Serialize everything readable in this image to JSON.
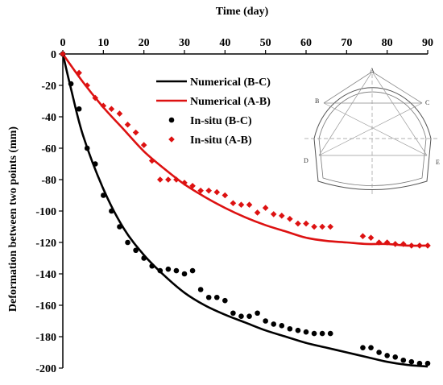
{
  "chart_data": {
    "type": "line",
    "x_axis": {
      "label": "Time (day)",
      "position": "top",
      "range": [
        0,
        90
      ],
      "ticks": [
        0,
        10,
        20,
        30,
        40,
        50,
        60,
        70,
        80,
        90
      ]
    },
    "y_axis": {
      "label": "Deformation between two points (mm)",
      "range": [
        -200,
        0
      ],
      "ticks": [
        0,
        -20,
        -40,
        -60,
        -80,
        -100,
        -120,
        -140,
        -160,
        -180,
        -200
      ]
    },
    "grid": false,
    "legend_position": "top-center",
    "series": [
      {
        "name": "Numerical (B-C)",
        "style": "line",
        "color": "#000000",
        "x": [
          0,
          2,
          5,
          10,
          15,
          20,
          25,
          30,
          35,
          40,
          45,
          50,
          55,
          60,
          65,
          70,
          75,
          80,
          85,
          90
        ],
        "y": [
          0,
          -22,
          -52,
          -86,
          -111,
          -128,
          -141,
          -152,
          -160,
          -166,
          -171,
          -176,
          -180,
          -184,
          -187,
          -190,
          -193,
          -196,
          -198,
          -199
        ]
      },
      {
        "name": "Numerical (A-B)",
        "style": "line",
        "color": "#dd1111",
        "x": [
          0,
          5,
          10,
          15,
          20,
          25,
          30,
          35,
          40,
          45,
          50,
          55,
          60,
          65,
          70,
          75,
          80,
          85,
          90
        ],
        "y": [
          0,
          -18,
          -34,
          -48,
          -62,
          -73,
          -83,
          -91,
          -98,
          -104,
          -109,
          -113,
          -117,
          -119,
          -120,
          -121,
          -121,
          -122,
          -122
        ]
      },
      {
        "name": "In-situ (B-C)",
        "style": "marker-circle",
        "color": "#000000",
        "x": [
          0,
          2,
          4,
          6,
          8,
          10,
          12,
          14,
          16,
          18,
          20,
          22,
          24,
          26,
          28,
          30,
          32,
          34,
          36,
          38,
          40,
          42,
          44,
          46,
          48,
          50,
          52,
          54,
          56,
          58,
          60,
          62,
          64,
          66,
          74,
          76,
          78,
          80,
          82,
          84,
          86,
          88,
          90
        ],
        "y": [
          0,
          -19,
          -35,
          -60,
          -70,
          -90,
          -100,
          -110,
          -120,
          -125,
          -130,
          -135,
          -138,
          -137,
          -138,
          -140,
          -138,
          -150,
          -155,
          -155,
          -157,
          -165,
          -167,
          -167,
          -165,
          -170,
          -172,
          -173,
          -175,
          -176,
          -177,
          -178,
          -178,
          -178,
          -187,
          -187,
          -190,
          -192,
          -193,
          -195,
          -196,
          -197,
          -197
        ]
      },
      {
        "name": "In-situ (A-B)",
        "style": "marker-diamond",
        "color": "#dd1111",
        "x": [
          0,
          4,
          6,
          8,
          10,
          12,
          14,
          16,
          18,
          20,
          22,
          24,
          26,
          28,
          30,
          32,
          34,
          36,
          38,
          40,
          42,
          44,
          46,
          48,
          50,
          52,
          54,
          56,
          58,
          60,
          62,
          64,
          66,
          74,
          76,
          78,
          80,
          82,
          84,
          86,
          88,
          90
        ],
        "y": [
          0,
          -12,
          -20,
          -28,
          -33,
          -35,
          -38,
          -45,
          -50,
          -58,
          -68,
          -80,
          -80,
          -80,
          -82,
          -84,
          -87,
          -87,
          -88,
          -90,
          -95,
          -96,
          -96,
          -101,
          -98,
          -102,
          -103,
          -105,
          -108,
          -108,
          -110,
          -110,
          -110,
          -116,
          -117,
          -120,
          -120,
          -121,
          -121,
          -122,
          -122,
          -122
        ]
      }
    ],
    "inset": {
      "description": "tunnel cross-section with measuring points",
      "point_labels": [
        "A",
        "B",
        "C",
        "D",
        "E"
      ]
    }
  }
}
